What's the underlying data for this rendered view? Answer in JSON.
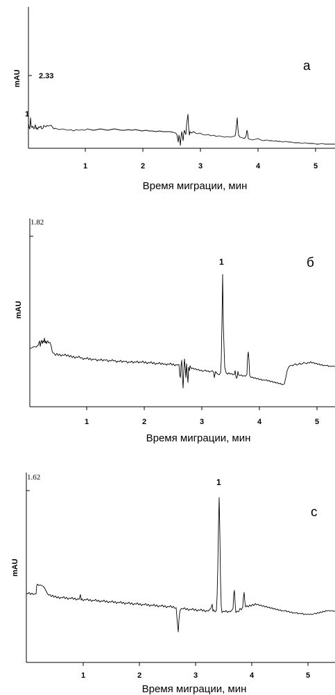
{
  "chart_data": [
    {
      "type": "line",
      "panel_label": "а",
      "xlabel": "Время миграции, мин",
      "ylabel": "mAU",
      "scale_label": "2.33",
      "peak_label": "1",
      "x_ticks": [
        "1",
        "2",
        "3",
        "4",
        "5"
      ],
      "xlim": [
        0,
        5.35
      ],
      "baseline_points": [
        [
          0,
          0.2
        ],
        [
          0.1,
          0.22
        ],
        [
          0.4,
          0.27
        ],
        [
          1,
          0.18
        ],
        [
          2,
          0.19
        ],
        [
          2.6,
          0.15
        ],
        [
          3.0,
          0.14
        ],
        [
          3.6,
          0.1
        ],
        [
          4.0,
          0.07
        ],
        [
          4.5,
          0.03
        ],
        [
          5.3,
          0.0
        ]
      ],
      "peaks": [
        [
          2.78,
          0.55
        ],
        [
          3.65,
          0.45
        ],
        [
          3.83,
          0.16
        ],
        [
          2.62,
          -0.1
        ]
      ]
    },
    {
      "type": "line",
      "panel_label": "б",
      "xlabel": "Время миграции, мин",
      "ylabel": "mAU",
      "scale_label": "1.82",
      "peak_label": "1",
      "x_ticks": [
        "1",
        "2",
        "3",
        "4",
        "5"
      ],
      "xlim": [
        0,
        5.35
      ],
      "baseline_points": [
        [
          0,
          0.42
        ],
        [
          0.2,
          0.48
        ],
        [
          0.45,
          0.36
        ],
        [
          1,
          0.32
        ],
        [
          2,
          0.3
        ],
        [
          2.6,
          0.26
        ],
        [
          3.3,
          0.24
        ],
        [
          3.9,
          0.21
        ],
        [
          4.4,
          0.15
        ],
        [
          4.55,
          0.28
        ],
        [
          5.0,
          0.33
        ],
        [
          5.35,
          0.32
        ]
      ],
      "peaks": [
        [
          3.35,
          1.0
        ],
        [
          3.82,
          0.38
        ],
        [
          3.63,
          0.31
        ],
        [
          2.65,
          -0.08
        ]
      ]
    },
    {
      "type": "line",
      "panel_label": "с",
      "xlabel": "Время миграции, мин",
      "ylabel": "mAU",
      "scale_label": "1.62",
      "peak_label": "1",
      "x_ticks": [
        "1",
        "2",
        "3",
        "4",
        "5"
      ],
      "xlim": [
        0,
        5.45
      ],
      "baseline_points": [
        [
          0,
          0.22
        ],
        [
          0.18,
          0.24
        ],
        [
          0.4,
          0.2
        ],
        [
          1,
          0.18
        ],
        [
          2,
          0.15
        ],
        [
          2.6,
          0.14
        ],
        [
          3.3,
          0.15
        ],
        [
          4.0,
          0.12
        ],
        [
          4.6,
          0.08
        ],
        [
          5.45,
          0.06
        ]
      ],
      "peaks": [
        [
          3.42,
          1.0
        ],
        [
          3.88,
          0.36
        ],
        [
          3.7,
          0.3
        ],
        [
          2.68,
          -0.1
        ]
      ]
    }
  ]
}
